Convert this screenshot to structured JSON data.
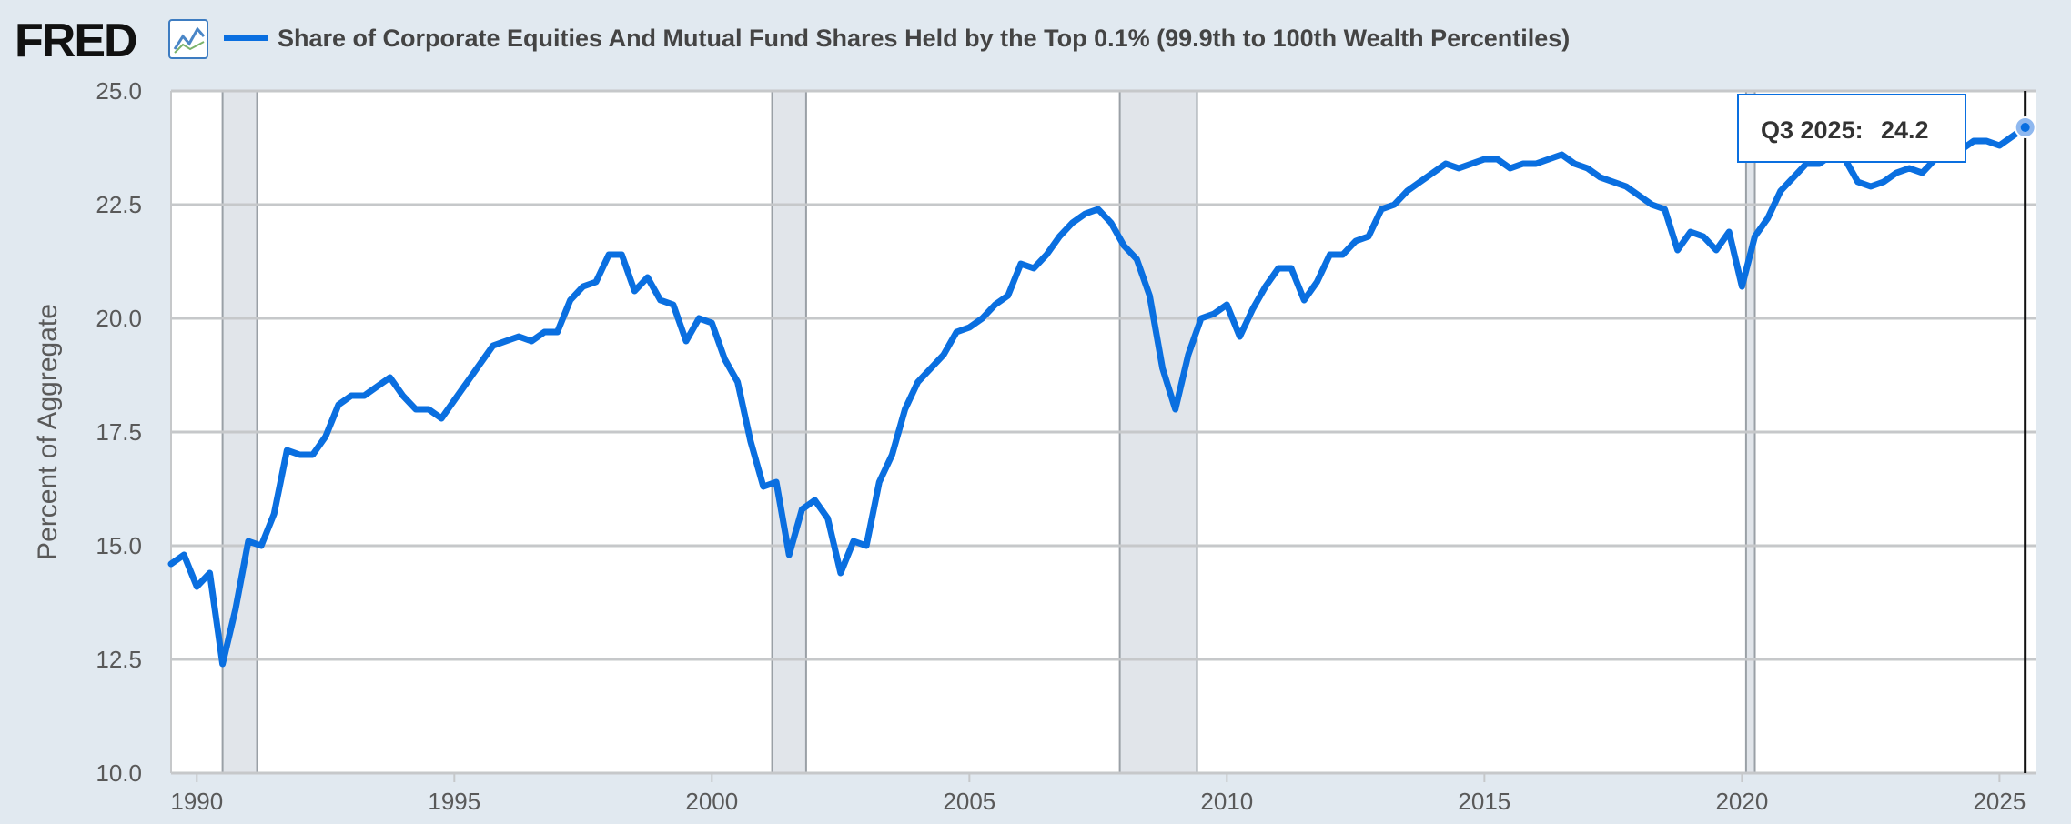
{
  "logo": {
    "text": "FRED",
    "icon": "line-chart-icon"
  },
  "chart_data": {
    "type": "line",
    "title": "Share of Corporate Equities And Mutual Fund Shares Held by the Top 0.1% (99.9th to 100th Wealth Percentiles)",
    "ylabel": "Percent of Aggregate",
    "xlabel": "",
    "xlim": [
      1989.5,
      2025.7
    ],
    "ylim": [
      10.0,
      25.0
    ],
    "x_ticks": [
      "1990",
      "1995",
      "2000",
      "2005",
      "2010",
      "2015",
      "2020",
      "2025"
    ],
    "y_ticks": [
      "10.0",
      "12.5",
      "15.0",
      "17.5",
      "20.0",
      "22.5",
      "25.0"
    ],
    "grid": true,
    "recessions": [
      [
        1990.5,
        1991.17
      ],
      [
        2001.17,
        2001.83
      ],
      [
        2007.92,
        2009.42
      ],
      [
        2020.08,
        2020.25
      ]
    ],
    "series": [
      {
        "color": "#0a6fe0",
        "x": [
          1989.5,
          1989.75,
          1990.0,
          1990.25,
          1990.5,
          1990.75,
          1991.0,
          1991.25,
          1991.5,
          1991.75,
          1992.0,
          1992.25,
          1992.5,
          1992.75,
          1993.0,
          1993.25,
          1993.5,
          1993.75,
          1994.0,
          1994.25,
          1994.5,
          1994.75,
          1995.0,
          1995.25,
          1995.5,
          1995.75,
          1996.0,
          1996.25,
          1996.5,
          1996.75,
          1997.0,
          1997.25,
          1997.5,
          1997.75,
          1998.0,
          1998.25,
          1998.5,
          1998.75,
          1999.0,
          1999.25,
          1999.5,
          1999.75,
          2000.0,
          2000.25,
          2000.5,
          2000.75,
          2001.0,
          2001.25,
          2001.5,
          2001.75,
          2002.0,
          2002.25,
          2002.5,
          2002.75,
          2003.0,
          2003.25,
          2003.5,
          2003.75,
          2004.0,
          2004.25,
          2004.5,
          2004.75,
          2005.0,
          2005.25,
          2005.5,
          2005.75,
          2006.0,
          2006.25,
          2006.5,
          2006.75,
          2007.0,
          2007.25,
          2007.5,
          2007.75,
          2008.0,
          2008.25,
          2008.5,
          2008.75,
          2009.0,
          2009.25,
          2009.5,
          2009.75,
          2010.0,
          2010.25,
          2010.5,
          2010.75,
          2011.0,
          2011.25,
          2011.5,
          2011.75,
          2012.0,
          2012.25,
          2012.5,
          2012.75,
          2013.0,
          2013.25,
          2013.5,
          2013.75,
          2014.0,
          2014.25,
          2014.5,
          2014.75,
          2015.0,
          2015.25,
          2015.5,
          2015.75,
          2016.0,
          2016.25,
          2016.5,
          2016.75,
          2017.0,
          2017.25,
          2017.5,
          2017.75,
          2018.0,
          2018.25,
          2018.5,
          2018.75,
          2019.0,
          2019.25,
          2019.5,
          2019.75,
          2020.0,
          2020.25,
          2020.5,
          2020.75,
          2021.0,
          2021.25,
          2021.5,
          2021.75,
          2022.0,
          2022.25,
          2022.5,
          2022.75,
          2023.0,
          2023.25,
          2023.5,
          2023.75,
          2024.0,
          2024.25,
          2024.5,
          2024.75,
          2025.0,
          2025.25,
          2025.5
        ],
        "values": [
          14.6,
          14.8,
          14.1,
          14.4,
          12.4,
          13.6,
          15.1,
          15.0,
          15.7,
          17.1,
          17.0,
          17.0,
          17.4,
          18.1,
          18.3,
          18.3,
          18.5,
          18.7,
          18.3,
          18.0,
          18.0,
          17.8,
          18.2,
          18.6,
          19.0,
          19.4,
          19.5,
          19.6,
          19.5,
          19.7,
          19.7,
          20.4,
          20.7,
          20.8,
          21.4,
          21.4,
          20.6,
          20.9,
          20.4,
          20.3,
          19.5,
          20.0,
          19.9,
          19.1,
          18.6,
          17.3,
          16.3,
          16.4,
          14.8,
          15.8,
          16.0,
          15.6,
          14.4,
          15.1,
          15.0,
          16.4,
          17.0,
          18.0,
          18.6,
          18.9,
          19.2,
          19.7,
          19.8,
          20.0,
          20.3,
          20.5,
          21.2,
          21.1,
          21.4,
          21.8,
          22.1,
          22.3,
          22.4,
          22.1,
          21.6,
          21.3,
          20.5,
          18.9,
          18.0,
          19.2,
          20.0,
          20.1,
          20.3,
          19.6,
          20.2,
          20.7,
          21.1,
          21.1,
          20.4,
          20.8,
          21.4,
          21.4,
          21.7,
          21.8,
          22.4,
          22.5,
          22.8,
          23.0,
          23.2,
          23.4,
          23.3,
          23.4,
          23.5,
          23.5,
          23.3,
          23.4,
          23.4,
          23.5,
          23.6,
          23.4,
          23.3,
          23.1,
          23.0,
          22.9,
          22.7,
          22.5,
          22.4,
          21.5,
          21.9,
          21.8,
          21.5,
          21.9,
          20.7,
          21.8,
          22.2,
          22.8,
          23.1,
          23.4,
          23.4,
          23.6,
          23.5,
          23.0,
          22.9,
          23.0,
          23.2,
          23.3,
          23.2,
          23.5,
          23.7,
          23.7,
          23.9,
          23.9,
          23.8,
          24.0,
          24.2
        ]
      }
    ],
    "tooltip": {
      "label": "Q3 2025:",
      "value": "24.2"
    }
  }
}
